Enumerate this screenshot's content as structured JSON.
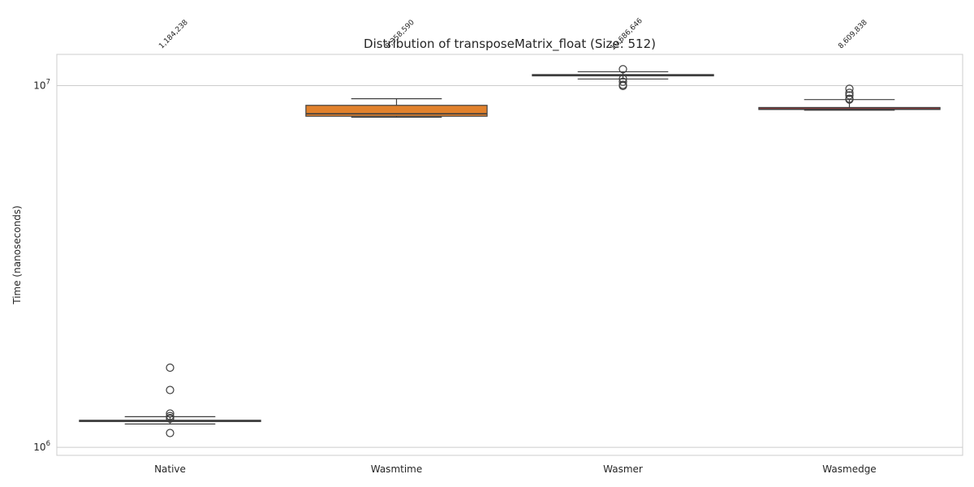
{
  "chart_data": {
    "type": "box",
    "title": "Distribution of transposeMatrix_float (Size: 512)",
    "xlabel": "",
    "ylabel": "Time (nanoseconds)",
    "yscale": "log",
    "ylim": [
      950000,
      12200000
    ],
    "yticks": [
      {
        "value": 1000000,
        "base": "10",
        "exp": "6"
      },
      {
        "value": 10000000,
        "base": "10",
        "exp": "7"
      }
    ],
    "grid": true,
    "categories": [
      "Native",
      "Wasmtime",
      "Wasmer",
      "Wasmedge"
    ],
    "series": [
      {
        "color": "#3274a1",
        "whisker_low": 1160000,
        "q1": 1178000,
        "median": 1184238,
        "q3": 1188000,
        "whisker_high": 1215000,
        "median_label": "1,184,238",
        "outliers": [
          1660000,
          1440000,
          1240000,
          1220000,
          1205000,
          1200000,
          1095000
        ]
      },
      {
        "color": "#e1812c",
        "whisker_low": 8180000,
        "q1": 8230000,
        "median": 8358590,
        "q3": 8820000,
        "whisker_high": 9200000,
        "median_label": "8,358,590",
        "outliers": []
      },
      {
        "color": "#3a923a",
        "whisker_low": 10430000,
        "q1": 10640000,
        "median": 10686646,
        "q3": 10730000,
        "whisker_high": 10920000,
        "median_label": "10,686,646",
        "outliers": [
          11100000,
          10450000,
          10250000,
          10050000,
          9980000
        ]
      },
      {
        "color": "#c03d3e",
        "whisker_low": 8550000,
        "q1": 8590000,
        "median": 8609838,
        "q3": 8700000,
        "whisker_high": 9150000,
        "median_label": "8,609,838",
        "outliers": [
          9800000,
          9550000,
          9400000,
          9200000,
          9150000
        ]
      }
    ]
  }
}
